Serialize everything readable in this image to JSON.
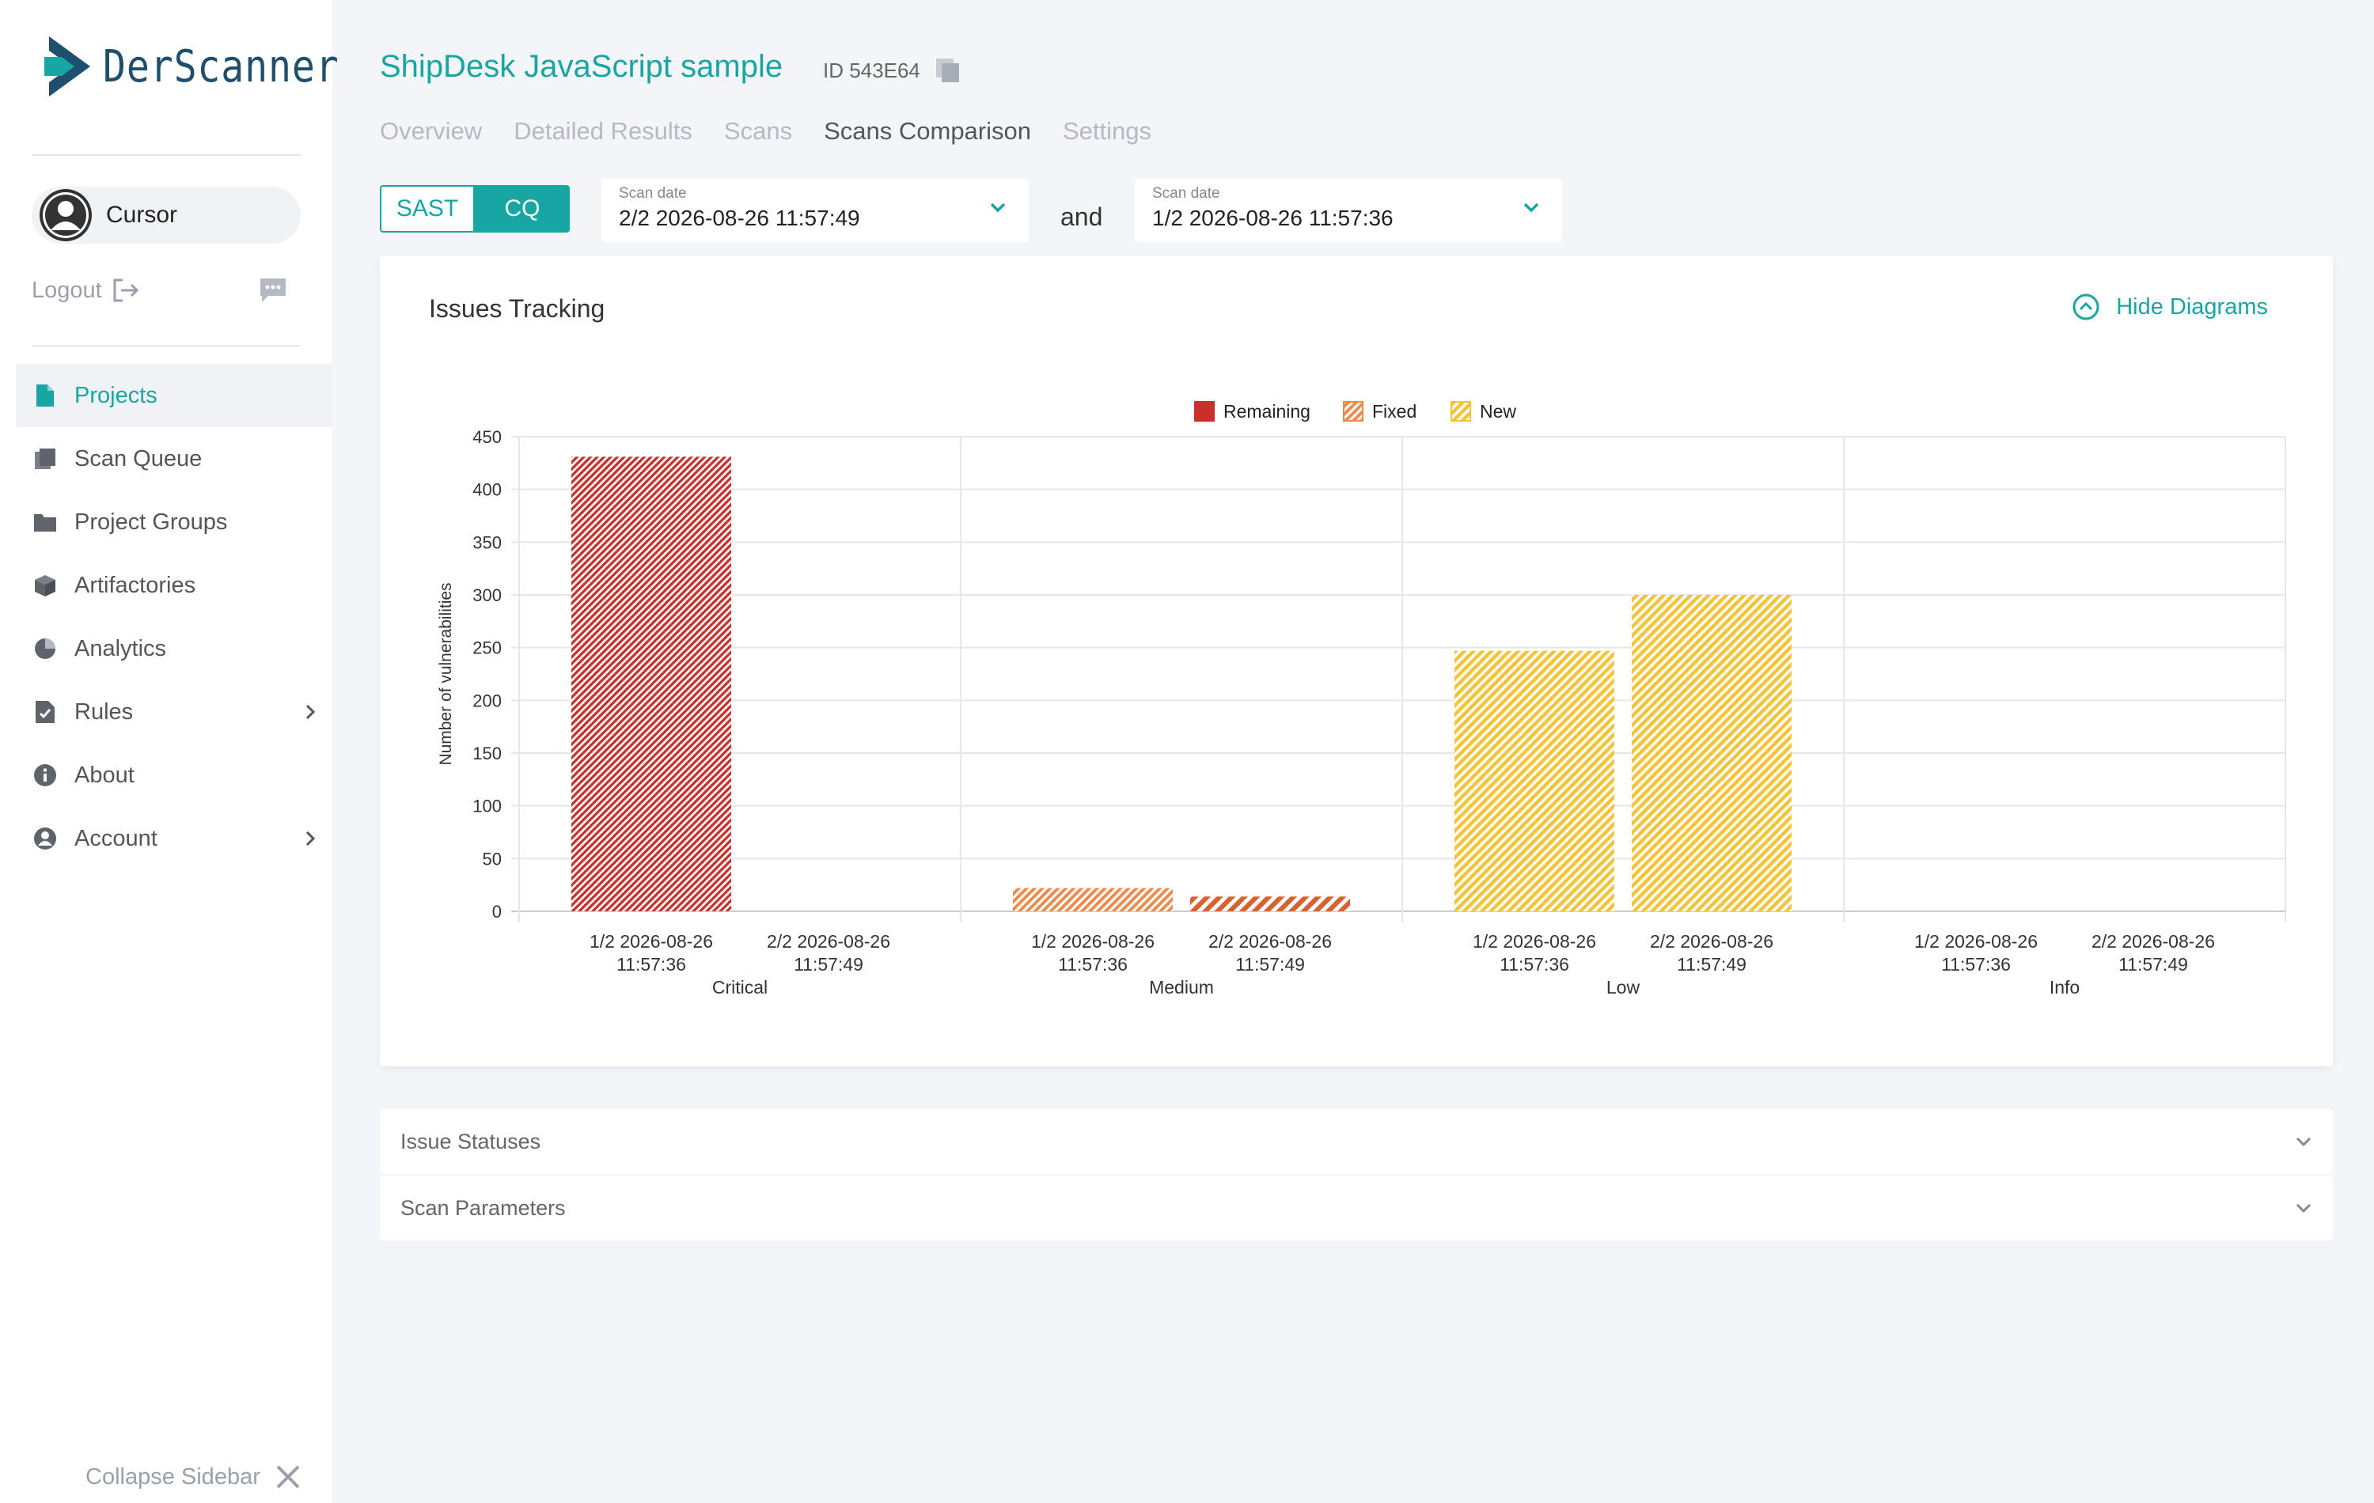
{
  "app": {
    "logo_text": "DerScanner"
  },
  "user": {
    "name": "Cursor"
  },
  "logout_label": "Logout",
  "nav": [
    {
      "label": "Projects",
      "icon": "file-icon",
      "active": true
    },
    {
      "label": "Scan Queue",
      "icon": "scan-queue-icon"
    },
    {
      "label": "Project Groups",
      "icon": "folder-icon"
    },
    {
      "label": "Artifactories",
      "icon": "box-icon"
    },
    {
      "label": "Analytics",
      "icon": "pie-chart-icon"
    },
    {
      "label": "Rules",
      "icon": "rules-icon",
      "expandable": true
    },
    {
      "label": "About",
      "icon": "info-icon"
    },
    {
      "label": "Account",
      "icon": "account-icon",
      "expandable": true
    }
  ],
  "collapse_label": "Collapse Sidebar",
  "project": {
    "title": "ShipDesk JavaScript sample",
    "id_label": "ID 543E64"
  },
  "tabs": [
    {
      "label": "Overview"
    },
    {
      "label": "Detailed Results"
    },
    {
      "label": "Scans"
    },
    {
      "label": "Scans Comparison",
      "active": true
    },
    {
      "label": "Settings"
    }
  ],
  "toggle": {
    "sast": "SAST",
    "cq": "CQ",
    "selected": "CQ"
  },
  "scan_select_1": {
    "label": "Scan date",
    "value": "2/2 2026-08-26 11:57:49"
  },
  "and_label": "and",
  "scan_select_2": {
    "label": "Scan date",
    "value": "1/2 2026-08-26 11:57:36"
  },
  "issues_card": {
    "title": "Issues Tracking",
    "hide_label": "Hide Diagrams"
  },
  "accordions": [
    {
      "label": "Issue Statuses"
    },
    {
      "label": "Scan Parameters"
    }
  ],
  "colors": {
    "accent": "#18a6a2",
    "remaining": "#c9302c",
    "fixed": "#ec8b4a",
    "new": "#f4c336",
    "fixed_dense": "#d8622f"
  },
  "chart_data": {
    "type": "bar",
    "categories": [
      "Critical",
      "Medium",
      "Low",
      "Info"
    ],
    "scan_labels": [
      [
        "1/2 2026-08-26",
        "11:57:36"
      ],
      [
        "2/2 2026-08-26",
        "11:57:49"
      ]
    ],
    "legend": [
      {
        "name": "Remaining",
        "color": "#c9302c"
      },
      {
        "name": "Fixed",
        "color": "#ec8b4a"
      },
      {
        "name": "New",
        "color": "#f4c336"
      }
    ],
    "bars": [
      {
        "category": "Critical",
        "scan": 0,
        "series": "Remaining",
        "value": 431
      },
      {
        "category": "Critical",
        "scan": 1,
        "series": "Remaining",
        "value": 0
      },
      {
        "category": "Medium",
        "scan": 0,
        "series": "Fixed",
        "value": 22
      },
      {
        "category": "Medium",
        "scan": 1,
        "series": "Fixed",
        "value": 14
      },
      {
        "category": "Low",
        "scan": 0,
        "series": "New",
        "value": 247
      },
      {
        "category": "Low",
        "scan": 1,
        "series": "New",
        "value": 300
      },
      {
        "category": "Info",
        "scan": 0,
        "series": "New",
        "value": 0
      },
      {
        "category": "Info",
        "scan": 1,
        "series": "New",
        "value": 0
      }
    ],
    "ylabel": "Number of vulnerabilities",
    "xlabel": "",
    "ylim": [
      0,
      450
    ],
    "yticks": [
      0,
      50,
      100,
      150,
      200,
      250,
      300,
      350,
      400,
      450
    ],
    "grid": true,
    "legend_position": "top-center"
  }
}
